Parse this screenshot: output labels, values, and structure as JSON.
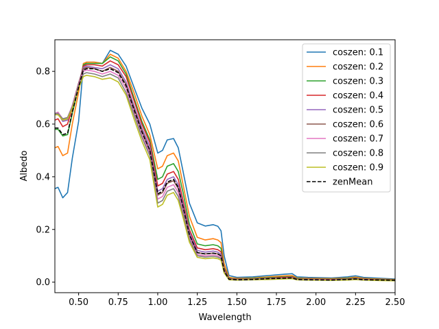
{
  "chart_data": {
    "type": "line",
    "title": "",
    "xlabel": "Wavelength",
    "ylabel": "Albedo",
    "xlim": [
      0.35,
      2.5
    ],
    "ylim": [
      -0.04,
      0.92
    ],
    "xticks": [
      "0.50",
      "0.75",
      "1.00",
      "1.25",
      "1.50",
      "1.75",
      "2.00",
      "2.25",
      "2.50"
    ],
    "yticks": [
      "0.0",
      "0.2",
      "0.4",
      "0.6",
      "0.8"
    ],
    "grid": false,
    "legend_position": "top-right",
    "x": [
      0.35,
      0.37,
      0.4,
      0.43,
      0.46,
      0.5,
      0.53,
      0.55,
      0.6,
      0.65,
      0.7,
      0.75,
      0.8,
      0.85,
      0.9,
      0.95,
      1.0,
      1.03,
      1.06,
      1.1,
      1.13,
      1.16,
      1.2,
      1.25,
      1.3,
      1.35,
      1.38,
      1.4,
      1.42,
      1.45,
      1.5,
      1.6,
      1.7,
      1.8,
      1.85,
      1.88,
      1.95,
      2.1,
      2.2,
      2.25,
      2.3,
      2.4,
      2.5
    ],
    "series": [
      {
        "name": "coszen: 0.1",
        "color": "#1f77b4",
        "dashed": false,
        "values": [
          0.355,
          0.36,
          0.32,
          0.34,
          0.47,
          0.61,
          0.82,
          0.835,
          0.835,
          0.83,
          0.88,
          0.865,
          0.82,
          0.74,
          0.66,
          0.6,
          0.49,
          0.5,
          0.54,
          0.545,
          0.51,
          0.42,
          0.3,
          0.225,
          0.213,
          0.218,
          0.212,
          0.195,
          0.1,
          0.025,
          0.018,
          0.02,
          0.025,
          0.03,
          0.032,
          0.02,
          0.018,
          0.016,
          0.02,
          0.024,
          0.018,
          0.015,
          0.012
        ]
      },
      {
        "name": "coszen: 0.2",
        "color": "#ff7f0e",
        "dashed": false,
        "values": [
          0.51,
          0.515,
          0.48,
          0.49,
          0.6,
          0.72,
          0.83,
          0.835,
          0.835,
          0.83,
          0.865,
          0.85,
          0.8,
          0.72,
          0.63,
          0.56,
          0.43,
          0.44,
          0.48,
          0.49,
          0.46,
          0.37,
          0.25,
          0.17,
          0.16,
          0.165,
          0.16,
          0.15,
          0.07,
          0.018,
          0.014,
          0.016,
          0.02,
          0.024,
          0.025,
          0.016,
          0.014,
          0.013,
          0.016,
          0.019,
          0.014,
          0.012,
          0.01
        ]
      },
      {
        "name": "coszen: 0.3",
        "color": "#2ca02c",
        "dashed": false,
        "values": [
          0.58,
          0.58,
          0.555,
          0.56,
          0.64,
          0.74,
          0.825,
          0.83,
          0.83,
          0.83,
          0.855,
          0.84,
          0.79,
          0.7,
          0.61,
          0.54,
          0.39,
          0.4,
          0.44,
          0.45,
          0.42,
          0.34,
          0.22,
          0.145,
          0.138,
          0.142,
          0.138,
          0.128,
          0.055,
          0.015,
          0.012,
          0.014,
          0.017,
          0.02,
          0.021,
          0.014,
          0.012,
          0.011,
          0.014,
          0.016,
          0.012,
          0.01,
          0.009
        ]
      },
      {
        "name": "coszen: 0.4",
        "color": "#d62728",
        "dashed": false,
        "values": [
          0.615,
          0.62,
          0.59,
          0.6,
          0.66,
          0.75,
          0.82,
          0.825,
          0.825,
          0.82,
          0.84,
          0.825,
          0.78,
          0.69,
          0.6,
          0.53,
          0.365,
          0.375,
          0.41,
          0.42,
          0.39,
          0.31,
          0.2,
          0.13,
          0.123,
          0.127,
          0.123,
          0.115,
          0.05,
          0.013,
          0.011,
          0.012,
          0.015,
          0.018,
          0.019,
          0.012,
          0.011,
          0.01,
          0.012,
          0.014,
          0.011,
          0.009,
          0.008
        ]
      },
      {
        "name": "coszen: 0.5",
        "color": "#9467bd",
        "dashed": false,
        "values": [
          0.635,
          0.64,
          0.61,
          0.615,
          0.67,
          0.755,
          0.815,
          0.82,
          0.815,
          0.81,
          0.825,
          0.81,
          0.76,
          0.67,
          0.585,
          0.515,
          0.345,
          0.355,
          0.39,
          0.4,
          0.37,
          0.295,
          0.19,
          0.12,
          0.114,
          0.118,
          0.114,
          0.106,
          0.045,
          0.012,
          0.01,
          0.011,
          0.014,
          0.016,
          0.017,
          0.011,
          0.01,
          0.009,
          0.011,
          0.013,
          0.01,
          0.008,
          0.007
        ]
      },
      {
        "name": "coszen: 0.6",
        "color": "#8c564b",
        "dashed": false,
        "values": [
          0.64,
          0.645,
          0.615,
          0.62,
          0.67,
          0.755,
          0.81,
          0.815,
          0.81,
          0.8,
          0.815,
          0.8,
          0.75,
          0.66,
          0.575,
          0.5,
          0.33,
          0.34,
          0.375,
          0.385,
          0.355,
          0.28,
          0.18,
          0.112,
          0.107,
          0.11,
          0.107,
          0.1,
          0.042,
          0.011,
          0.009,
          0.01,
          0.013,
          0.015,
          0.016,
          0.01,
          0.009,
          0.008,
          0.01,
          0.012,
          0.009,
          0.008,
          0.007
        ]
      },
      {
        "name": "coszen: 0.7",
        "color": "#e377c2",
        "dashed": false,
        "values": [
          0.64,
          0.645,
          0.62,
          0.625,
          0.67,
          0.75,
          0.8,
          0.805,
          0.8,
          0.79,
          0.8,
          0.785,
          0.735,
          0.645,
          0.56,
          0.49,
          0.315,
          0.325,
          0.36,
          0.37,
          0.34,
          0.27,
          0.17,
          0.105,
          0.1,
          0.103,
          0.1,
          0.094,
          0.04,
          0.01,
          0.009,
          0.01,
          0.012,
          0.014,
          0.015,
          0.01,
          0.009,
          0.008,
          0.009,
          0.011,
          0.009,
          0.007,
          0.006
        ]
      },
      {
        "name": "coszen: 0.8",
        "color": "#7f7f7f",
        "dashed": false,
        "values": [
          0.64,
          0.64,
          0.62,
          0.625,
          0.665,
          0.745,
          0.79,
          0.795,
          0.79,
          0.78,
          0.79,
          0.775,
          0.72,
          0.635,
          0.55,
          0.48,
          0.3,
          0.31,
          0.345,
          0.355,
          0.325,
          0.258,
          0.162,
          0.1,
          0.095,
          0.098,
          0.095,
          0.089,
          0.038,
          0.01,
          0.008,
          0.009,
          0.011,
          0.013,
          0.014,
          0.009,
          0.008,
          0.007,
          0.009,
          0.01,
          0.008,
          0.007,
          0.006
        ]
      },
      {
        "name": "coszen: 0.9",
        "color": "#bcbd22",
        "dashed": false,
        "values": [
          0.635,
          0.635,
          0.615,
          0.62,
          0.66,
          0.735,
          0.78,
          0.785,
          0.78,
          0.77,
          0.775,
          0.76,
          0.71,
          0.62,
          0.535,
          0.465,
          0.285,
          0.295,
          0.33,
          0.34,
          0.31,
          0.245,
          0.152,
          0.094,
          0.089,
          0.092,
          0.089,
          0.083,
          0.035,
          0.009,
          0.008,
          0.009,
          0.01,
          0.012,
          0.013,
          0.009,
          0.008,
          0.007,
          0.008,
          0.01,
          0.008,
          0.006,
          0.005
        ]
      },
      {
        "name": "zenMean",
        "color": "#000000",
        "dashed": true,
        "values": [
          0.585,
          0.585,
          0.56,
          0.565,
          0.645,
          0.74,
          0.805,
          0.81,
          0.81,
          0.8,
          0.81,
          0.795,
          0.745,
          0.655,
          0.57,
          0.5,
          0.335,
          0.345,
          0.38,
          0.39,
          0.36,
          0.285,
          0.18,
          0.112,
          0.107,
          0.11,
          0.107,
          0.1,
          0.042,
          0.011,
          0.009,
          0.01,
          0.013,
          0.015,
          0.016,
          0.01,
          0.009,
          0.008,
          0.01,
          0.012,
          0.009,
          0.008,
          0.007
        ]
      }
    ]
  }
}
